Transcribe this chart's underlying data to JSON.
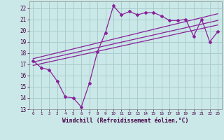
{
  "xlabel": "Windchill (Refroidissement éolien,°C)",
  "background_color": "#cbe8e8",
  "grid_color": "#aacccc",
  "line_color": "#882299",
  "xlim": [
    -0.5,
    23.5
  ],
  "ylim": [
    13,
    22.6
  ],
  "yticks": [
    13,
    14,
    15,
    16,
    17,
    18,
    19,
    20,
    21,
    22
  ],
  "xticks": [
    0,
    1,
    2,
    3,
    4,
    5,
    6,
    7,
    8,
    9,
    10,
    11,
    12,
    13,
    14,
    15,
    16,
    17,
    18,
    19,
    20,
    21,
    22,
    23
  ],
  "main_x": [
    0,
    1,
    2,
    3,
    4,
    5,
    6,
    7,
    8,
    9,
    10,
    11,
    12,
    13,
    14,
    15,
    16,
    17,
    18,
    19,
    20,
    21,
    22,
    23
  ],
  "main_y": [
    17.3,
    16.7,
    16.5,
    15.5,
    14.1,
    14.0,
    13.2,
    15.3,
    18.1,
    19.8,
    22.2,
    21.4,
    21.7,
    21.4,
    21.6,
    21.6,
    21.3,
    20.9,
    20.9,
    21.0,
    19.5,
    21.0,
    19.0,
    19.9
  ],
  "line1_x": [
    0,
    23
  ],
  "line1_y": [
    16.9,
    20.5
  ],
  "line2_x": [
    0,
    23
  ],
  "line2_y": [
    17.2,
    20.9
  ],
  "line3_x": [
    0,
    23
  ],
  "line3_y": [
    17.5,
    21.5
  ]
}
